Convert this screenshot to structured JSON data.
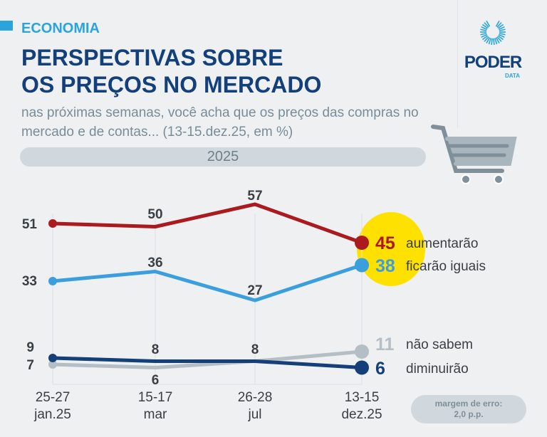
{
  "header": {
    "section": "ECONOMIA",
    "title_line1": "PERSPECTIVAS SOBRE",
    "title_line2": "OS PREÇOS NO MERCADO",
    "subtitle": "nas próximas semanas, você acha que os preços das compras no mercado e de contas... (13-15.dez.25, em %)",
    "year": "2025"
  },
  "logo": {
    "name": "PODER",
    "sub": "DATA"
  },
  "footer": {
    "margin_line1": "margem de erro:",
    "margin_line2": "2,0 p.p."
  },
  "colors": {
    "aumentarao": "#ab1a1f",
    "ficarao": "#3a9fdc",
    "nao_sabem": "#b4bec4",
    "diminuirao": "#143f78",
    "highlight": "#ffe100"
  },
  "chart_data": {
    "type": "line",
    "categories": [
      [
        "25-27",
        "jan.25"
      ],
      [
        "15-17",
        "mar"
      ],
      [
        "26-28",
        "jul"
      ],
      [
        "13-15",
        "dez.25"
      ]
    ],
    "series": [
      {
        "name": "aumentarão",
        "values": [
          51,
          50,
          57,
          45
        ]
      },
      {
        "name": "ficarão iguais",
        "values": [
          33,
          36,
          27,
          38
        ]
      },
      {
        "name": "não sabem",
        "values": [
          7,
          6,
          8,
          11
        ]
      },
      {
        "name": "diminuirão",
        "values": [
          9,
          8,
          8,
          6
        ]
      }
    ],
    "unit": "%",
    "grid": "vertical"
  }
}
